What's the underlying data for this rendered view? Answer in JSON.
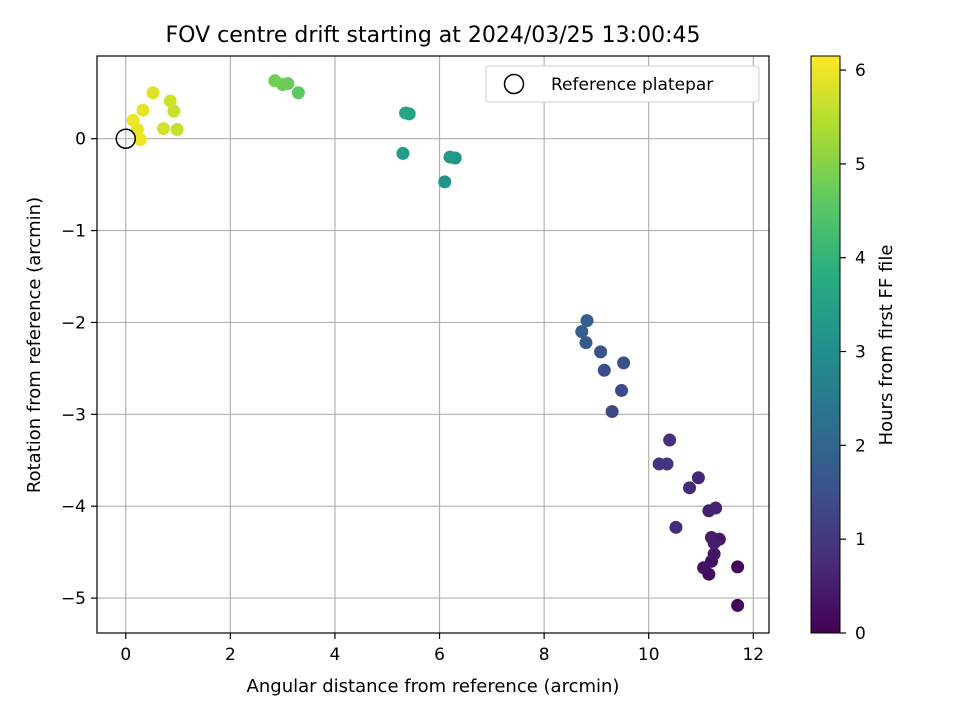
{
  "chart_data": {
    "type": "scatter",
    "title": "FOV centre drift starting at 2024/03/25 13:00:45",
    "xlabel": "Angular distance from reference (arcmin)",
    "ylabel": "Rotation from reference (arcmin)",
    "xlim": [
      -0.55,
      12.3
    ],
    "ylim": [
      -5.38,
      0.9
    ],
    "xticks": [
      0,
      2,
      4,
      6,
      8,
      10,
      12
    ],
    "xtick_labels": [
      "0",
      "2",
      "4",
      "6",
      "8",
      "10",
      "12"
    ],
    "yticks": [
      0,
      -1,
      -2,
      -3,
      -4,
      -5
    ],
    "ytick_labels": [
      "0",
      "−1",
      "−2",
      "−3",
      "−4",
      "−5"
    ],
    "grid": true,
    "legend": {
      "position": "top-right",
      "entries": [
        {
          "label": "Reference platepar",
          "marker": "open-circle"
        }
      ]
    },
    "reference_point": {
      "x": 0,
      "y": 0
    },
    "colorbar": {
      "label": "Hours from first FF file",
      "range": [
        0,
        6.15
      ],
      "ticks": [
        0,
        1,
        2,
        3,
        4,
        5,
        6
      ],
      "tick_labels": [
        "0",
        "1",
        "2",
        "3",
        "4",
        "5",
        "6"
      ],
      "colormap": "viridis"
    },
    "points": [
      {
        "x": 11.7,
        "y": -5.08,
        "c": 0.05
      },
      {
        "x": 11.7,
        "y": -4.66,
        "c": 0.1
      },
      {
        "x": 11.15,
        "y": -4.74,
        "c": 0.2
      },
      {
        "x": 11.2,
        "y": -4.6,
        "c": 0.25
      },
      {
        "x": 11.05,
        "y": -4.67,
        "c": 0.3
      },
      {
        "x": 11.25,
        "y": -4.52,
        "c": 0.35
      },
      {
        "x": 11.35,
        "y": -4.36,
        "c": 0.4
      },
      {
        "x": 11.2,
        "y": -4.34,
        "c": 0.45
      },
      {
        "x": 11.25,
        "y": -4.4,
        "c": 0.5
      },
      {
        "x": 11.15,
        "y": -4.05,
        "c": 0.55
      },
      {
        "x": 11.28,
        "y": -4.02,
        "c": 0.6
      },
      {
        "x": 10.95,
        "y": -3.69,
        "c": 0.65
      },
      {
        "x": 10.78,
        "y": -3.8,
        "c": 0.7
      },
      {
        "x": 10.52,
        "y": -4.23,
        "c": 0.75
      },
      {
        "x": 10.4,
        "y": -3.28,
        "c": 0.85
      },
      {
        "x": 10.2,
        "y": -3.54,
        "c": 0.9
      },
      {
        "x": 10.35,
        "y": -3.54,
        "c": 0.95
      },
      {
        "x": 9.3,
        "y": -2.97,
        "c": 1.3
      },
      {
        "x": 9.48,
        "y": -2.74,
        "c": 1.35
      },
      {
        "x": 9.15,
        "y": -2.52,
        "c": 1.45
      },
      {
        "x": 9.52,
        "y": -2.44,
        "c": 1.5
      },
      {
        "x": 9.08,
        "y": -2.32,
        "c": 1.6
      },
      {
        "x": 8.8,
        "y": -2.22,
        "c": 1.7
      },
      {
        "x": 8.72,
        "y": -2.1,
        "c": 1.8
      },
      {
        "x": 8.82,
        "y": -1.98,
        "c": 1.85
      },
      {
        "x": 6.1,
        "y": -0.47,
        "c": 3.15
      },
      {
        "x": 6.3,
        "y": -0.21,
        "c": 3.2
      },
      {
        "x": 6.2,
        "y": -0.2,
        "c": 3.25
      },
      {
        "x": 5.3,
        "y": -0.16,
        "c": 3.4
      },
      {
        "x": 5.42,
        "y": 0.27,
        "c": 3.55
      },
      {
        "x": 5.35,
        "y": 0.28,
        "c": 3.6
      },
      {
        "x": 3.3,
        "y": 0.5,
        "c": 4.6
      },
      {
        "x": 3.1,
        "y": 0.6,
        "c": 4.7
      },
      {
        "x": 3.0,
        "y": 0.59,
        "c": 4.75
      },
      {
        "x": 2.85,
        "y": 0.63,
        "c": 4.8
      },
      {
        "x": 0.98,
        "y": 0.1,
        "c": 5.6
      },
      {
        "x": 0.92,
        "y": 0.3,
        "c": 5.65
      },
      {
        "x": 0.85,
        "y": 0.41,
        "c": 5.7
      },
      {
        "x": 0.72,
        "y": 0.11,
        "c": 5.75
      },
      {
        "x": 0.52,
        "y": 0.5,
        "c": 5.85
      },
      {
        "x": 0.33,
        "y": 0.31,
        "c": 5.9
      },
      {
        "x": 0.22,
        "y": 0.1,
        "c": 5.95
      },
      {
        "x": 0.14,
        "y": 0.2,
        "c": 6.0
      },
      {
        "x": 0.28,
        "y": -0.01,
        "c": 6.05
      }
    ]
  }
}
